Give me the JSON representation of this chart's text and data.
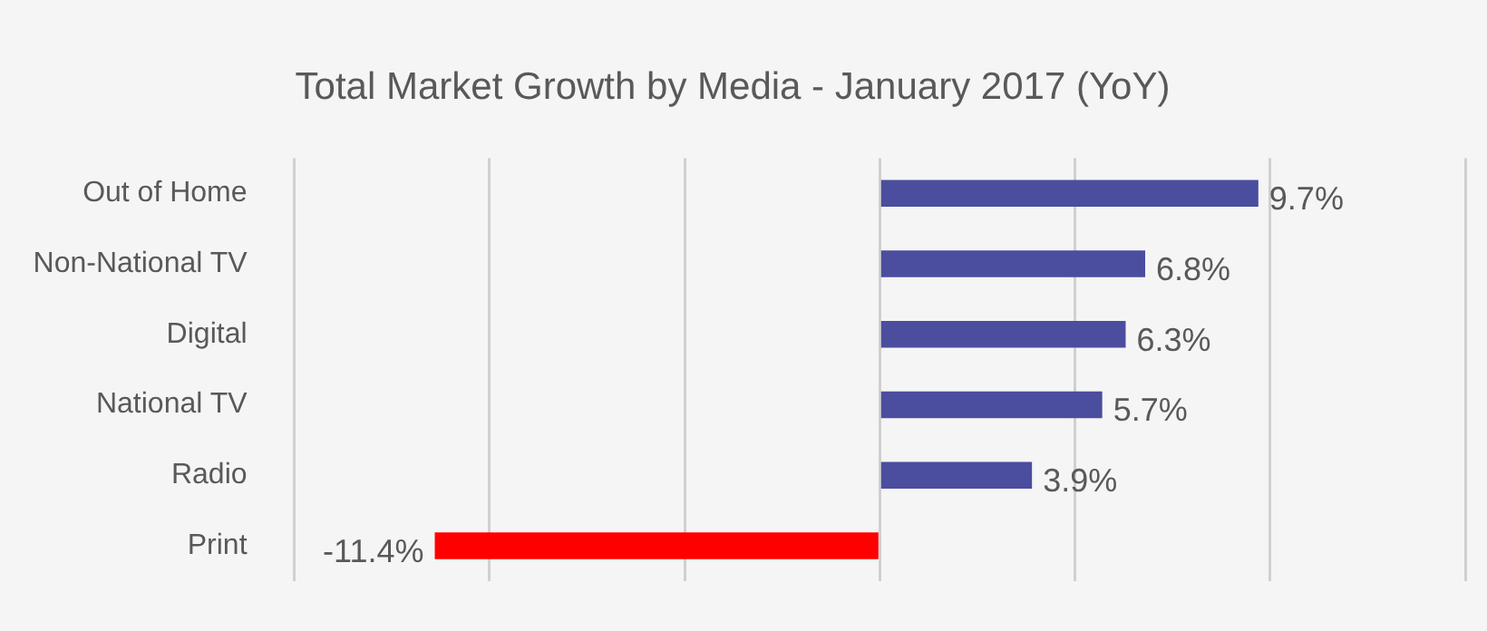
{
  "chart_data": {
    "type": "bar",
    "orientation": "horizontal",
    "title": "Total Market Growth by Media - January 2017 (YoY)",
    "categories": [
      "Out of Home",
      "Non-National TV",
      "Digital",
      "National TV",
      "Radio",
      "Print"
    ],
    "values": [
      9.7,
      6.8,
      6.3,
      5.7,
      3.9,
      -11.4
    ],
    "colors": [
      "#4b4d9e",
      "#4b4d9e",
      "#4b4d9e",
      "#4b4d9e",
      "#4b4d9e",
      "#ff0000"
    ],
    "value_labels": [
      "9.7%",
      "6.8%",
      "6.3%",
      "5.7%",
      "3.9%",
      "-11.4%"
    ],
    "xlim": [
      -15,
      15
    ],
    "tick_labels": "y",
    "grid": "x",
    "legend": false
  }
}
